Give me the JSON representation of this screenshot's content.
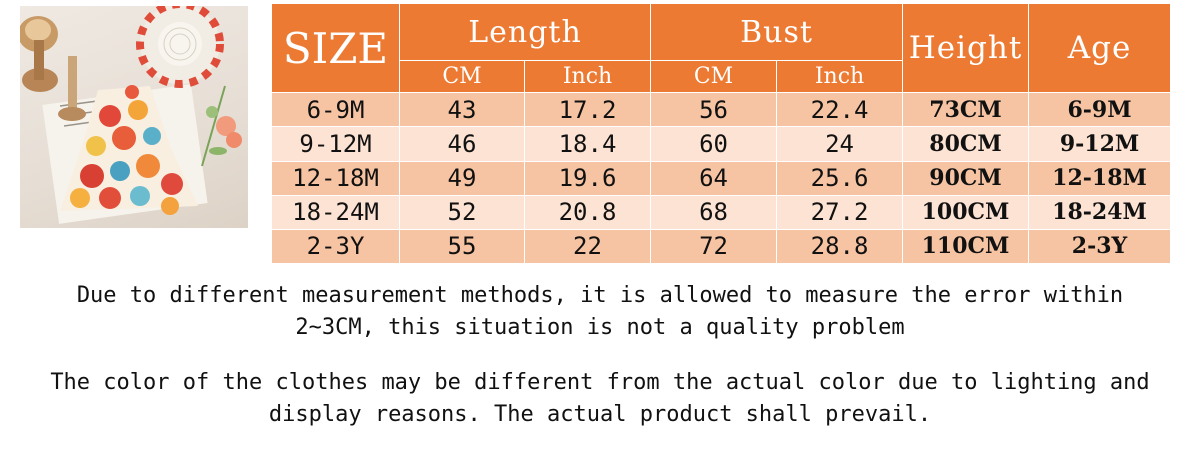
{
  "table": {
    "size_header": "SIZE",
    "length_header": "Length",
    "bust_header": "Bust",
    "height_header": "Height",
    "age_header": "Age",
    "sub_headers": [
      "CM",
      "Inch",
      "CM",
      "Inch"
    ],
    "rows": [
      [
        "6-9M",
        "43",
        "17.2",
        "56",
        "22.4",
        "73CM",
        "6-9M"
      ],
      [
        "9-12M",
        "46",
        "18.4",
        "60",
        "24",
        "80CM",
        "9-12M"
      ],
      [
        "12-18M",
        "49",
        "19.6",
        "64",
        "25.6",
        "90CM",
        "12-18M"
      ],
      [
        "18-24M",
        "52",
        "20.8",
        "68",
        "27.2",
        "100CM",
        "18-24M"
      ],
      [
        "2-3Y",
        "55",
        "22",
        "72",
        "28.8",
        "110CM",
        "2-3Y"
      ]
    ]
  },
  "notes": {
    "measurement": "Due to different measurement methods, it is allowed to measure the error within\n2~3CM, this situation is not a quality problem",
    "color": "The color of the clothes may be different from the actual color due to lighting and\ndisplay reasons. The actual product shall prevail."
  },
  "colors": {
    "header": "#ec7a33",
    "row_odd": "#f6c4a3",
    "row_even": "#fde3d3"
  }
}
